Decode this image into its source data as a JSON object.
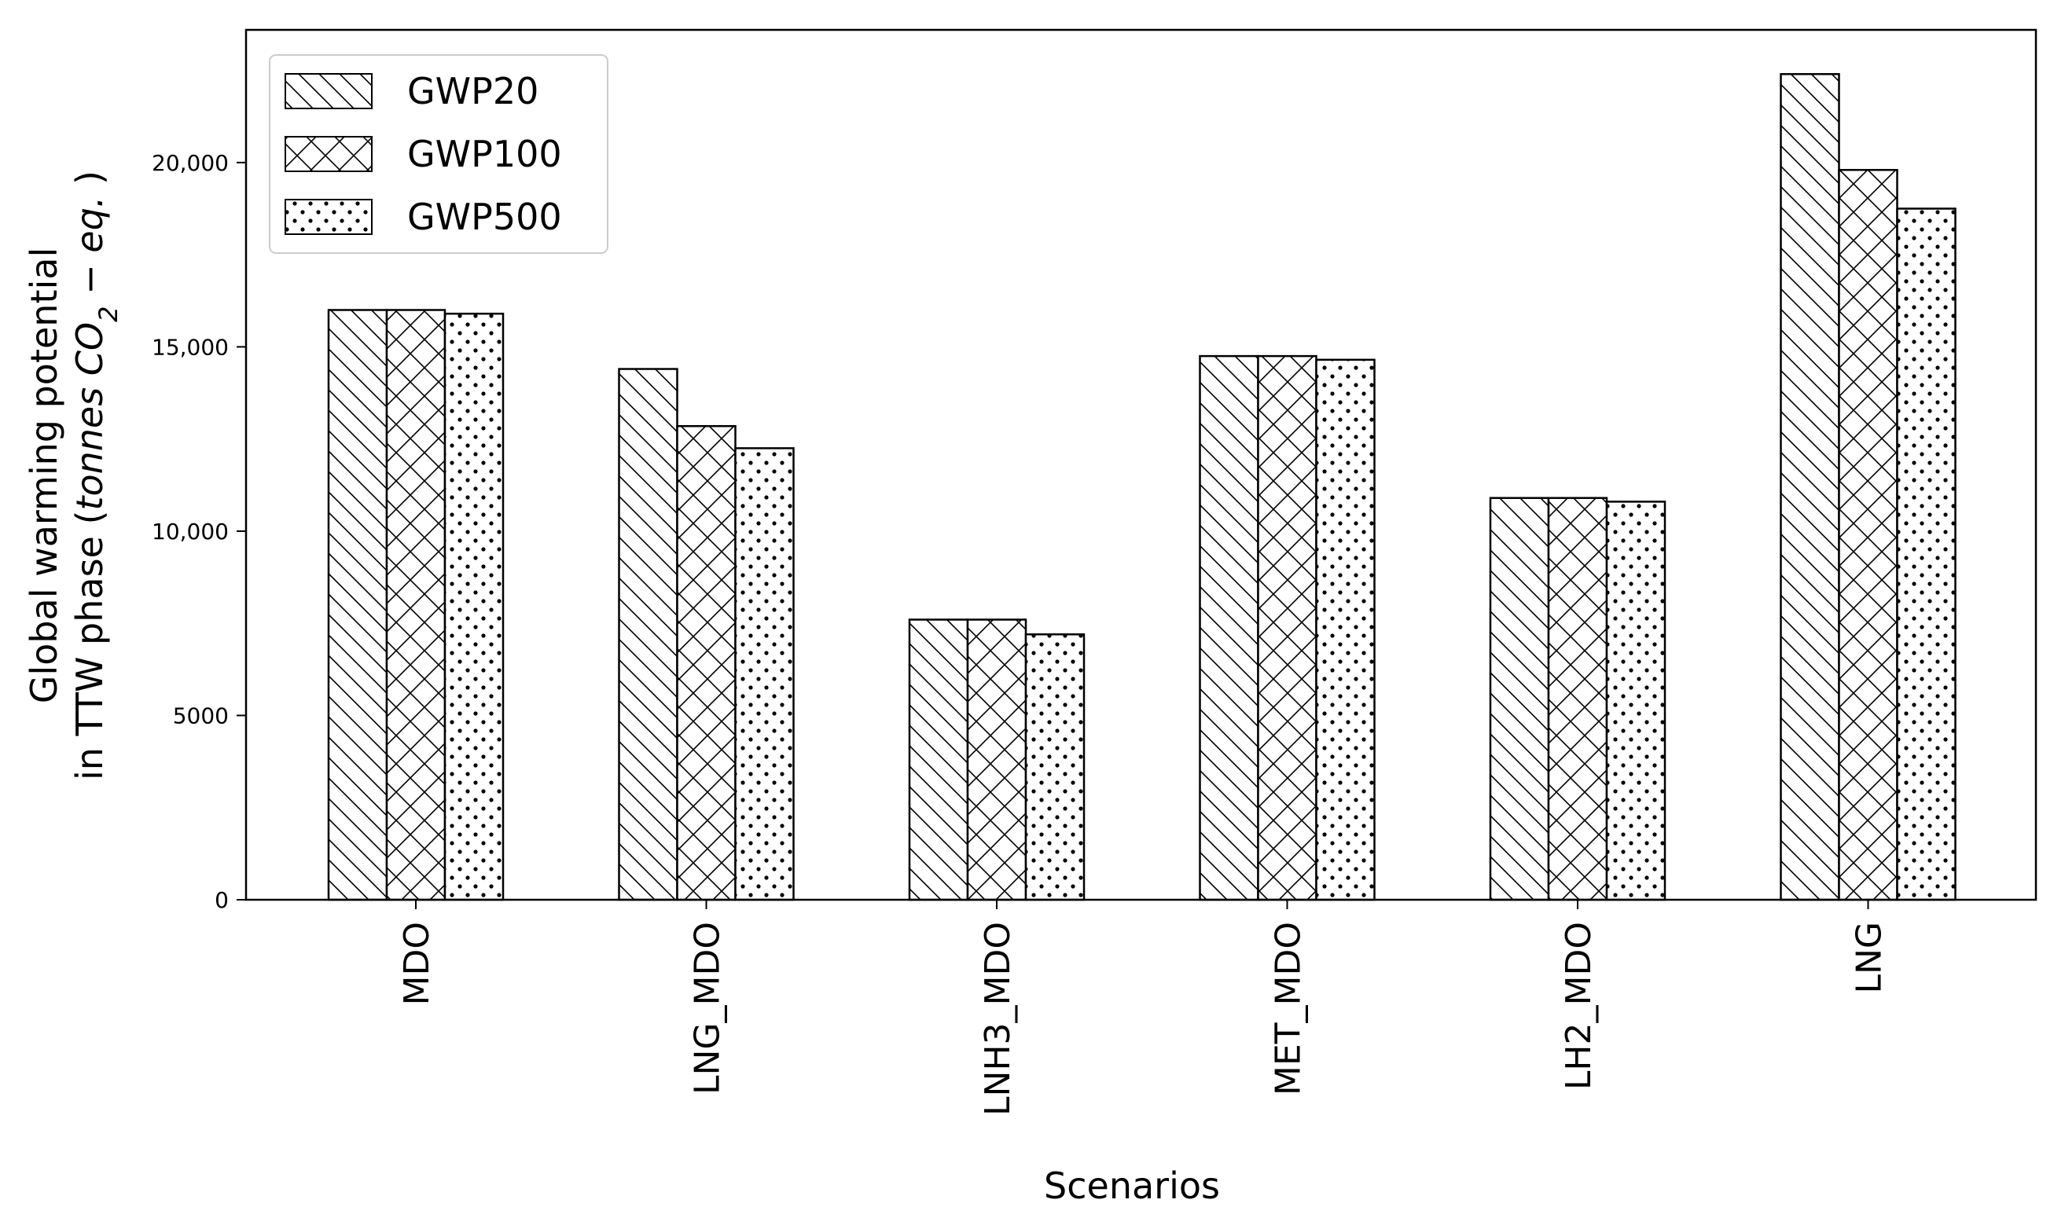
{
  "chart_data": {
    "type": "bar",
    "xlabel": "Scenarios",
    "ylabel_line1": "Global warming potential",
    "ylabel_line2_prefix": "in TTW phase (",
    "ylabel_unit_italic": "tonnes CO",
    "ylabel_unit_sub": "2",
    "ylabel_unit_rest": " − eq.",
    "ylabel_suffix": " )",
    "categories": [
      "MDO",
      "LNG_MDO",
      "LNH3_MDO",
      "MET_MDO",
      "LH2_MDO",
      "LNG"
    ],
    "series": [
      {
        "name": "GWP20",
        "pattern": "diagonal-hatch",
        "values": [
          16000,
          14400,
          7600,
          14750,
          10900,
          22400
        ]
      },
      {
        "name": "GWP100",
        "pattern": "cross-hatch",
        "values": [
          16000,
          12850,
          7600,
          14750,
          10900,
          19800
        ]
      },
      {
        "name": "GWP500",
        "pattern": "dots",
        "values": [
          15900,
          12250,
          7200,
          14650,
          10800,
          18750
        ]
      }
    ],
    "ylim": [
      0,
      23600
    ],
    "yticks": [
      0,
      5000,
      10000,
      15000,
      20000
    ],
    "ytick_labels": [
      "0",
      "5000",
      "10,000",
      "15,000",
      "20,000"
    ],
    "grid": false,
    "legend_position": "top-left",
    "bar_fill": "#ffffff",
    "bar_edge": "#000000"
  }
}
